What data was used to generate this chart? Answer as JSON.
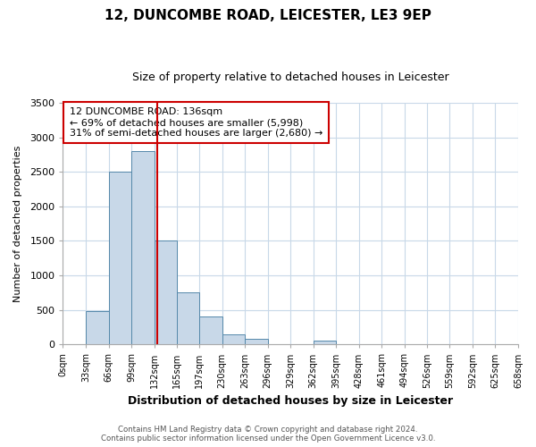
{
  "title": "12, DUNCOMBE ROAD, LEICESTER, LE3 9EP",
  "subtitle": "Size of property relative to detached houses in Leicester",
  "xlabel": "Distribution of detached houses by size in Leicester",
  "ylabel": "Number of detached properties",
  "bin_edges": [
    0,
    33,
    66,
    99,
    132,
    165,
    197,
    230,
    263,
    296,
    329,
    362,
    395,
    428,
    461,
    494,
    526,
    559,
    592,
    625,
    658
  ],
  "bin_labels": [
    "0sqm",
    "33sqm",
    "66sqm",
    "99sqm",
    "132sqm",
    "165sqm",
    "197sqm",
    "230sqm",
    "263sqm",
    "296sqm",
    "329sqm",
    "362sqm",
    "395sqm",
    "428sqm",
    "461sqm",
    "494sqm",
    "526sqm",
    "559sqm",
    "592sqm",
    "625sqm",
    "658sqm"
  ],
  "counts": [
    0,
    480,
    2500,
    2800,
    1500,
    750,
    400,
    150,
    80,
    0,
    0,
    60,
    0,
    0,
    0,
    0,
    0,
    0,
    0,
    0
  ],
  "bar_color": "#c8d8e8",
  "bar_edge_color": "#5588aa",
  "property_value": 136,
  "vline_color": "#cc0000",
  "annotation_text": "12 DUNCOMBE ROAD: 136sqm\n← 69% of detached houses are smaller (5,998)\n31% of semi-detached houses are larger (2,680) →",
  "annotation_box_color": "#ffffff",
  "annotation_box_edge_color": "#cc0000",
  "ylim": [
    0,
    3500
  ],
  "yticks": [
    0,
    500,
    1000,
    1500,
    2000,
    2500,
    3000,
    3500
  ],
  "footer_line1": "Contains HM Land Registry data © Crown copyright and database right 2024.",
  "footer_line2": "Contains public sector information licensed under the Open Government Licence v3.0.",
  "background_color": "#ffffff",
  "grid_color": "#c8d8e8",
  "title_fontsize": 11,
  "subtitle_fontsize": 9
}
